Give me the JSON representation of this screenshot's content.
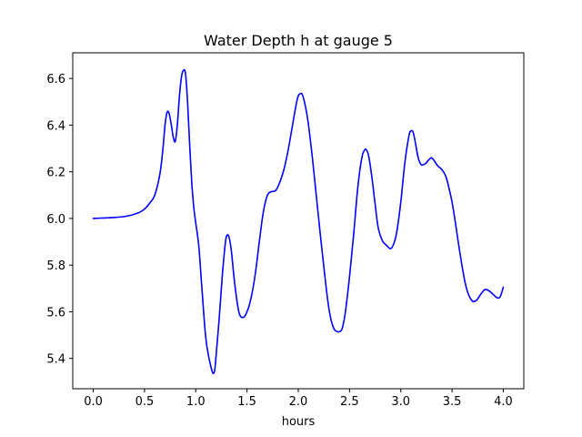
{
  "chart_data": {
    "type": "line",
    "title": "Water Depth h at gauge 5",
    "xlabel": "hours",
    "ylabel": "",
    "xlim": [
      -0.2,
      4.2
    ],
    "ylim": [
      5.27,
      6.71
    ],
    "xticks": [
      0.0,
      0.5,
      1.0,
      1.5,
      2.0,
      2.5,
      3.0,
      3.5,
      4.0
    ],
    "xtick_labels": [
      "0.0",
      "0.5",
      "1.0",
      "1.5",
      "2.0",
      "2.5",
      "3.0",
      "3.5",
      "4.0"
    ],
    "yticks": [
      5.4,
      5.6,
      5.8,
      6.0,
      6.2,
      6.4,
      6.6
    ],
    "ytick_labels": [
      "5.4",
      "5.6",
      "5.8",
      "6.0",
      "6.2",
      "6.4",
      "6.6"
    ],
    "grid": false,
    "legend": "none",
    "series": [
      {
        "color": "#0000ff",
        "x": [
          0.0,
          0.1,
          0.2,
          0.3,
          0.35,
          0.4,
          0.45,
          0.5,
          0.55,
          0.6,
          0.65,
          0.68,
          0.7,
          0.72,
          0.74,
          0.76,
          0.78,
          0.8,
          0.82,
          0.84,
          0.86,
          0.88,
          0.9,
          0.92,
          0.94,
          0.96,
          0.98,
          1.0,
          1.03,
          1.06,
          1.1,
          1.15,
          1.18,
          1.2,
          1.23,
          1.26,
          1.29,
          1.31,
          1.33,
          1.35,
          1.38,
          1.42,
          1.46,
          1.5,
          1.54,
          1.58,
          1.62,
          1.66,
          1.7,
          1.74,
          1.78,
          1.82,
          1.86,
          1.9,
          1.94,
          1.98,
          2.0,
          2.02,
          2.04,
          2.07,
          2.1,
          2.14,
          2.18,
          2.22,
          2.26,
          2.3,
          2.34,
          2.38,
          2.42,
          2.44,
          2.46,
          2.5,
          2.54,
          2.58,
          2.62,
          2.65,
          2.67,
          2.69,
          2.72,
          2.75,
          2.78,
          2.82,
          2.86,
          2.9,
          2.93,
          2.96,
          3.0,
          3.04,
          3.08,
          3.1,
          3.12,
          3.14,
          3.17,
          3.2,
          3.24,
          3.27,
          3.3,
          3.33,
          3.36,
          3.4,
          3.44,
          3.47,
          3.5,
          3.53,
          3.56,
          3.6,
          3.63,
          3.66,
          3.7,
          3.74,
          3.78,
          3.82,
          3.86,
          3.9,
          3.94,
          3.97,
          4.0
        ],
        "y": [
          6.0,
          6.002,
          6.004,
          6.008,
          6.012,
          6.018,
          6.026,
          6.04,
          6.065,
          6.1,
          6.19,
          6.3,
          6.4,
          6.455,
          6.45,
          6.405,
          6.35,
          6.33,
          6.4,
          6.52,
          6.605,
          6.635,
          6.62,
          6.5,
          6.32,
          6.16,
          6.05,
          5.98,
          5.88,
          5.7,
          5.48,
          5.36,
          5.34,
          5.42,
          5.58,
          5.76,
          5.9,
          5.93,
          5.91,
          5.85,
          5.72,
          5.6,
          5.575,
          5.6,
          5.66,
          5.76,
          5.9,
          6.03,
          6.1,
          6.115,
          6.12,
          6.155,
          6.21,
          6.29,
          6.39,
          6.49,
          6.525,
          6.535,
          6.53,
          6.48,
          6.4,
          6.25,
          6.08,
          5.91,
          5.75,
          5.61,
          5.535,
          5.515,
          5.52,
          5.55,
          5.6,
          5.75,
          5.93,
          6.13,
          6.26,
          6.295,
          6.29,
          6.26,
          6.17,
          6.06,
          5.96,
          5.905,
          5.885,
          5.87,
          5.89,
          5.94,
          6.07,
          6.24,
          6.355,
          6.375,
          6.37,
          6.33,
          6.26,
          6.23,
          6.235,
          6.25,
          6.26,
          6.245,
          6.225,
          6.21,
          6.18,
          6.13,
          6.07,
          5.99,
          5.9,
          5.79,
          5.72,
          5.675,
          5.645,
          5.65,
          5.675,
          5.695,
          5.69,
          5.675,
          5.66,
          5.665,
          5.705
        ]
      }
    ]
  }
}
